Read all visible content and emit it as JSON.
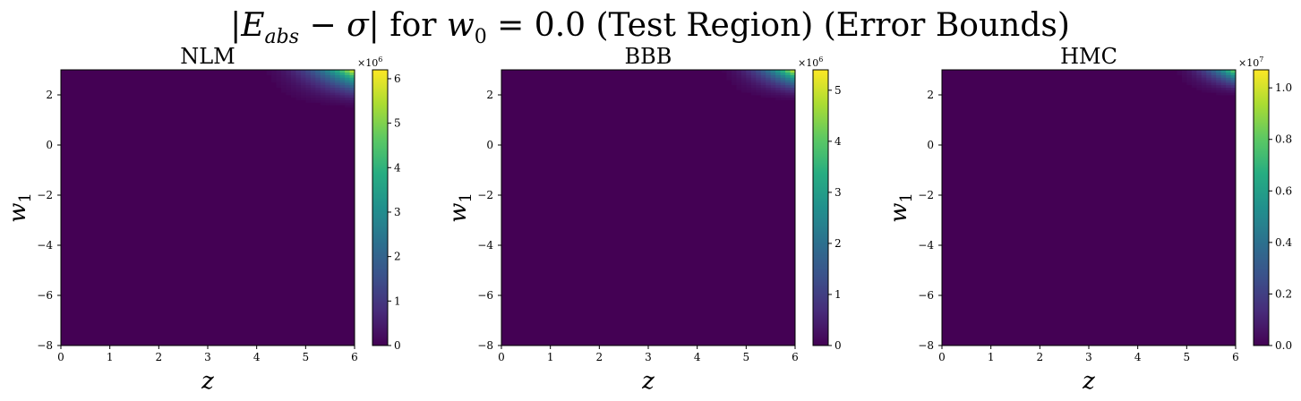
{
  "figure": {
    "title": "|E_abs − σ| for w_0 = 0.0 (Test Region) (Error Bounds)"
  },
  "chart_data": [
    {
      "type": "heatmap",
      "title": "NLM",
      "xlabel": "z",
      "ylabel": "w_1",
      "xlim": [
        0,
        6
      ],
      "ylim": [
        -8,
        3
      ],
      "xticks": [
        "0",
        "1",
        "2",
        "3",
        "4",
        "5",
        "6"
      ],
      "yticks": [
        "−8",
        "−6",
        "−4",
        "−2",
        "0",
        "2"
      ],
      "colormap": "viridis",
      "colorbar": {
        "min": 0,
        "max": 6.2,
        "multiplier": "×10^6",
        "ticks": [
          "0",
          "1",
          "2",
          "3",
          "4",
          "5",
          "6"
        ]
      },
      "hotspot": {
        "z_from": 3.8,
        "w1_from": 1.3,
        "peak_fraction": 1.0
      }
    },
    {
      "type": "heatmap",
      "title": "BBB",
      "xlabel": "z",
      "ylabel": "w_1",
      "xlim": [
        0,
        6
      ],
      "ylim": [
        -8,
        3
      ],
      "xticks": [
        "0",
        "1",
        "2",
        "3",
        "4",
        "5",
        "6"
      ],
      "yticks": [
        "−8",
        "−6",
        "−4",
        "−2",
        "0",
        "2"
      ],
      "colormap": "viridis",
      "colorbar": {
        "min": 0,
        "max": 5.4,
        "multiplier": "×10^6",
        "ticks": [
          "0",
          "1",
          "2",
          "3",
          "4",
          "5"
        ]
      },
      "hotspot": {
        "z_from": 4.2,
        "w1_from": 1.6,
        "peak_fraction": 1.0
      }
    },
    {
      "type": "heatmap",
      "title": "HMC",
      "xlabel": "z",
      "ylabel": "w_1",
      "xlim": [
        0,
        6
      ],
      "ylim": [
        -8,
        3
      ],
      "xticks": [
        "0",
        "1",
        "2",
        "3",
        "4",
        "5",
        "6"
      ],
      "yticks": [
        "−8",
        "−6",
        "−4",
        "−2",
        "0",
        "2"
      ],
      "colormap": "viridis",
      "colorbar": {
        "min": 0,
        "max": 1.07,
        "multiplier": "×10^7",
        "ticks": [
          "0.0",
          "0.2",
          "0.4",
          "0.6",
          "0.8",
          "1.0"
        ]
      },
      "hotspot": {
        "z_from": 4.5,
        "w1_from": 1.8,
        "peak_fraction": 0.85
      }
    }
  ]
}
